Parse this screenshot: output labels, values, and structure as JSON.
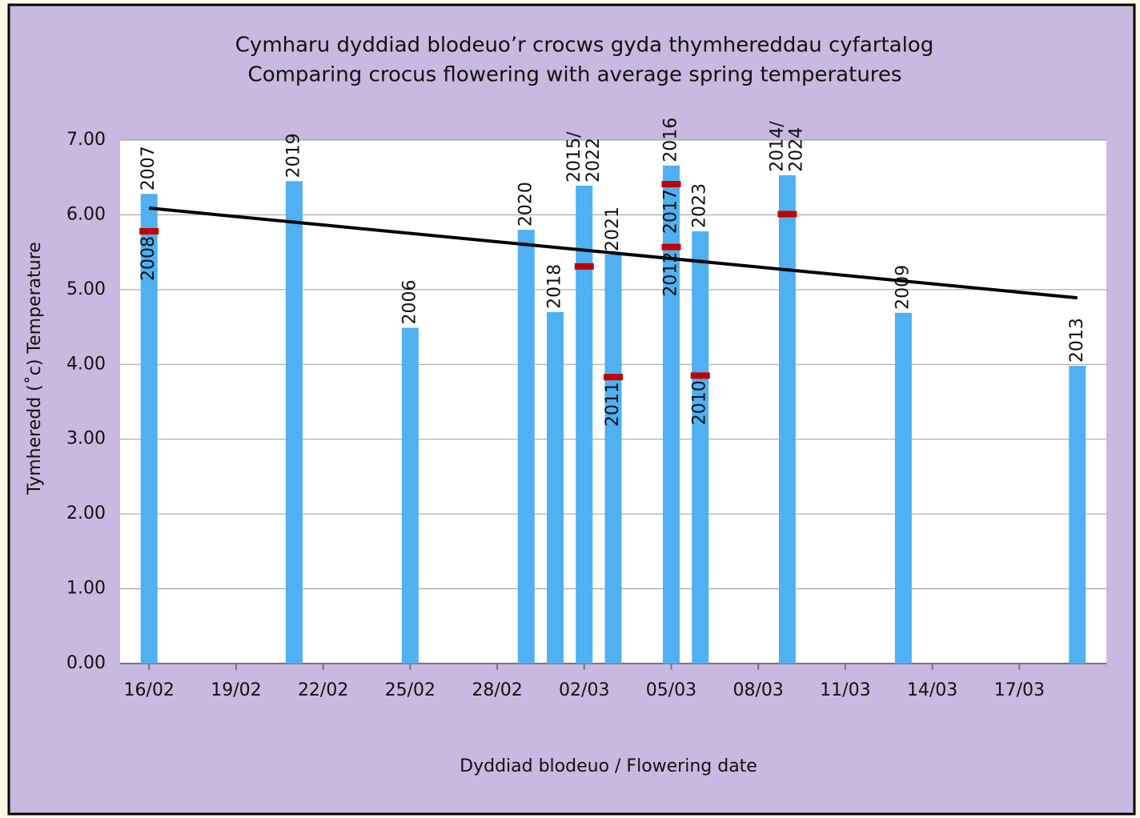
{
  "chart_data": {
    "type": "bar",
    "title": "Cymharu dyddiad blodeuo’r crocws gyda thymhereddau cyfartalog",
    "subtitle": "Comparing crocus flowering with average spring temperatures",
    "y_label": "Tymheredd  (˚c)  Temperature",
    "x_label": "Dyddiad blodeuo / Flowering date",
    "color": "#4fb0f2",
    "x": [
      "16/02",
      "21/02",
      "25/02",
      "29/02",
      "01/03",
      "02/03",
      "03/03",
      "05/03",
      "06/03",
      "09/03",
      "13/03",
      "19/03"
    ],
    "values": [
      6.28,
      6.45,
      4.49,
      5.8,
      4.7,
      6.39,
      5.47,
      6.66,
      5.78,
      6.53,
      4.69,
      3.98
    ],
    "labels": [
      [
        "2007"
      ],
      [
        "2019"
      ],
      [
        "2006"
      ],
      [
        "2020"
      ],
      [
        "2018"
      ],
      [
        "2015/",
        "2022"
      ],
      [
        "2021"
      ],
      [
        "2016"
      ],
      [
        "2023"
      ],
      [
        "2014/",
        "2024"
      ],
      [
        "2009"
      ],
      [
        "2013"
      ]
    ],
    "markers": {
      "color": "#c00000",
      "x": [
        "16/02",
        "02/03",
        "03/03",
        "05/03",
        "05/03",
        "06/03",
        "09/03"
      ],
      "values": [
        5.78,
        5.31,
        3.83,
        6.41,
        5.57,
        3.85,
        6.01
      ],
      "labels": [
        "2008",
        null,
        "2011",
        "2017",
        "2012",
        "2010",
        null
      ]
    },
    "trendline": {
      "color": "#000000",
      "x": [
        "16/02",
        "19/03"
      ],
      "values": [
        6.09,
        4.89
      ]
    },
    "xlim": [
      "15/02",
      "20/03"
    ],
    "xticks": [
      "16/02",
      "19/02",
      "22/02",
      "25/02",
      "28/02",
      "02/03",
      "05/03",
      "08/03",
      "11/03",
      "14/03",
      "17/03"
    ],
    "ylim": [
      0,
      7
    ],
    "yticks": [
      {
        "value": 0,
        "label": "0.00"
      },
      {
        "value": 1,
        "label": "1.00"
      },
      {
        "value": 2,
        "label": "2.00"
      },
      {
        "value": 3,
        "label": "3.00"
      },
      {
        "value": 4,
        "label": "4.00"
      },
      {
        "value": 5,
        "label": "5.00"
      },
      {
        "value": 6,
        "label": "6.00"
      },
      {
        "value": 7,
        "label": "7.00"
      }
    ],
    "grid": true
  }
}
